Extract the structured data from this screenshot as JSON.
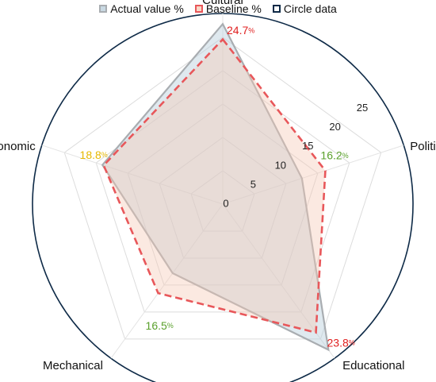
{
  "chart_data": {
    "type": "radar",
    "categories": [
      "Cultural",
      "Political",
      "Educational",
      "Mechanical",
      "Economic"
    ],
    "radial_ticks": [
      "0",
      "5",
      "10",
      "15",
      "20",
      "25"
    ],
    "rlim": [
      0,
      25
    ],
    "legend_position": "top",
    "series": [
      {
        "name": "Actual value %",
        "values": [
          27,
          12.5,
          27,
          12.8,
          19
        ],
        "line_color": "#a9adb1",
        "fill_color": "#b8cfdc"
      },
      {
        "name": "Baseline %",
        "values": [
          24.7,
          16.2,
          23.8,
          16.5,
          18.8
        ],
        "line_color": "#e8575a",
        "fill_color": "#f6c9b4",
        "dashed": true
      },
      {
        "name": "Circle data",
        "line_color": "#0e2a47"
      }
    ],
    "value_labels": [
      {
        "text": "24.7",
        "unit": "%",
        "color": "#e02020"
      },
      {
        "text": "16.2",
        "unit": "%",
        "color": "#5aa02c"
      },
      {
        "text": "23.8",
        "unit": "%",
        "color": "#e02020"
      },
      {
        "text": "16.5",
        "unit": "%",
        "color": "#5aa02c"
      },
      {
        "text": "18.8",
        "unit": "%",
        "color": "#e6b800"
      }
    ]
  }
}
